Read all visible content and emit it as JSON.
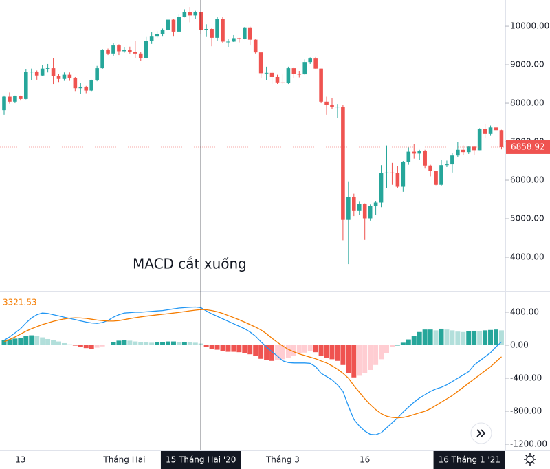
{
  "chart_data": [
    {
      "type": "candlestick",
      "up_color": "#26a69a",
      "down_color": "#ef5350",
      "ylim": [
        3125,
        10680
      ],
      "yticks": [
        {
          "value": 4000,
          "label": "4000.00"
        },
        {
          "value": 5000,
          "label": "5000.00"
        },
        {
          "value": 6000,
          "label": "6000.00"
        },
        {
          "value": 7000,
          "label": "7000.00"
        },
        {
          "value": 8000,
          "label": "8000.00"
        },
        {
          "value": 9000,
          "label": "9000.00"
        },
        {
          "value": 10000,
          "label": "10000.00"
        }
      ],
      "xticks": [
        {
          "value": 3,
          "label": "13"
        },
        {
          "value": 22,
          "label": "Tháng Hai"
        },
        {
          "value": 51,
          "label": "Tháng 3"
        },
        {
          "value": 66,
          "label": "16"
        }
      ],
      "highlight_labels": [
        {
          "value": 36,
          "label": "15 Tháng Hai '20"
        },
        {
          "value": 85.5,
          "label": "16 Tháng 1 '21"
        }
      ],
      "annotation": "MACD cắt xuống",
      "candles": [
        [
          7820,
          8200,
          7700,
          8170
        ],
        [
          8170,
          8280,
          7990,
          8040
        ],
        [
          8040,
          8200,
          8000,
          8180
        ],
        [
          8180,
          8200,
          8070,
          8110
        ],
        [
          8110,
          8880,
          8100,
          8810
        ],
        [
          8810,
          8900,
          8600,
          8820
        ],
        [
          8820,
          8850,
          8610,
          8720
        ],
        [
          8720,
          9000,
          8700,
          8900
        ],
        [
          8900,
          9020,
          8800,
          8910
        ],
        [
          8910,
          9170,
          8500,
          8700
        ],
        [
          8700,
          8750,
          8550,
          8630
        ],
        [
          8630,
          8800,
          8580,
          8740
        ],
        [
          8740,
          8800,
          8580,
          8660
        ],
        [
          8660,
          8680,
          8300,
          8390
        ],
        [
          8390,
          8530,
          8250,
          8430
        ],
        [
          8430,
          8450,
          8260,
          8330
        ],
        [
          8330,
          8610,
          8300,
          8600
        ],
        [
          8600,
          8970,
          8570,
          8910
        ],
        [
          8910,
          9410,
          8890,
          9390
        ],
        [
          9390,
          9420,
          9250,
          9290
        ],
        [
          9290,
          9560,
          9220,
          9500
        ],
        [
          9500,
          9530,
          9250,
          9350
        ],
        [
          9350,
          9460,
          9310,
          9390
        ],
        [
          9390,
          9470,
          9290,
          9340
        ],
        [
          9340,
          9610,
          9170,
          9290
        ],
        [
          9290,
          9340,
          9100,
          9180
        ],
        [
          9180,
          9720,
          9160,
          9610
        ],
        [
          9610,
          9840,
          9540,
          9730
        ],
        [
          9730,
          9870,
          9700,
          9800
        ],
        [
          9800,
          9940,
          9730,
          9900
        ],
        [
          9900,
          10190,
          9870,
          10170
        ],
        [
          10170,
          10180,
          9730,
          9860
        ],
        [
          9860,
          10300,
          9840,
          10250
        ],
        [
          10250,
          10440,
          10230,
          10360
        ],
        [
          10360,
          10500,
          10100,
          10280
        ],
        [
          10280,
          10400,
          10180,
          10370
        ],
        [
          10370,
          10380,
          9800,
          9900
        ],
        [
          9900,
          10050,
          9720,
          9930
        ],
        [
          9930,
          9960,
          9480,
          9700
        ],
        [
          9700,
          10250,
          9620,
          10180
        ],
        [
          10180,
          10240,
          9560,
          9600
        ],
        [
          9600,
          9680,
          9450,
          9600
        ],
        [
          9600,
          9770,
          9590,
          9690
        ],
        [
          9690,
          9700,
          9580,
          9670
        ],
        [
          9670,
          9980,
          9660,
          9970
        ],
        [
          9970,
          9990,
          9500,
          9650
        ],
        [
          9650,
          9660,
          9290,
          9320
        ],
        [
          9320,
          9330,
          8650,
          8780
        ],
        [
          8780,
          8950,
          8600,
          8790
        ],
        [
          8790,
          8850,
          8500,
          8680
        ],
        [
          8680,
          8740,
          8500,
          8540
        ],
        [
          8540,
          8750,
          8500,
          8520
        ],
        [
          8520,
          8950,
          8500,
          8910
        ],
        [
          8910,
          8920,
          8660,
          8760
        ],
        [
          8760,
          8840,
          8670,
          8750
        ],
        [
          8750,
          9140,
          8740,
          9070
        ],
        [
          9070,
          9190,
          9020,
          9160
        ],
        [
          9160,
          9200,
          8880,
          8900
        ],
        [
          8900,
          8900,
          8000,
          8040
        ],
        [
          8040,
          8170,
          7700,
          7950
        ],
        [
          7950,
          8130,
          7840,
          7910
        ],
        [
          7910,
          7980,
          7620,
          7910
        ],
        [
          7910,
          7960,
          4440,
          4970
        ],
        [
          4970,
          5970,
          3820,
          5560
        ],
        [
          5560,
          5650,
          5070,
          5200
        ],
        [
          5200,
          5440,
          5100,
          5390
        ],
        [
          5390,
          5400,
          4450,
          5010
        ],
        [
          5010,
          5370,
          4950,
          5330
        ],
        [
          5330,
          5450,
          5100,
          5420
        ],
        [
          5420,
          6390,
          5300,
          6190
        ],
        [
          6190,
          6900,
          5800,
          6200
        ],
        [
          6200,
          6450,
          5880,
          6190
        ],
        [
          6190,
          6370,
          5790,
          5830
        ],
        [
          5830,
          6500,
          5700,
          6480
        ],
        [
          6480,
          6850,
          6400,
          6740
        ],
        [
          6740,
          6930,
          6560,
          6690
        ],
        [
          6690,
          6790,
          6530,
          6760
        ],
        [
          6760,
          6790,
          6300,
          6380
        ],
        [
          6380,
          6400,
          6100,
          6250
        ],
        [
          6250,
          6250,
          5870,
          5880
        ],
        [
          5880,
          6520,
          5860,
          6390
        ],
        [
          6390,
          6510,
          6340,
          6410
        ],
        [
          6410,
          6700,
          6200,
          6640
        ],
        [
          6640,
          7000,
          6600,
          6790
        ],
        [
          6790,
          6900,
          6660,
          6730
        ],
        [
          6730,
          6890,
          6680,
          6870
        ],
        [
          6870,
          6890,
          6660,
          6780
        ],
        [
          6780,
          7350,
          6780,
          7340
        ],
        [
          7340,
          7450,
          7100,
          7200
        ],
        [
          7200,
          7420,
          7150,
          7370
        ],
        [
          7370,
          7390,
          7240,
          7300
        ],
        [
          7300,
          7310,
          6800,
          6858.92
        ]
      ]
    },
    {
      "type": "macd",
      "label": "3321.53",
      "label_color": "#f57c00",
      "y2lim": [
        -1275,
        658
      ],
      "y2ticks": [
        {
          "value": -1200,
          "label": "-1200.00"
        },
        {
          "value": -800,
          "label": "-800.00"
        },
        {
          "value": -400,
          "label": "-400.00"
        },
        {
          "value": 0,
          "label": "0.00"
        },
        {
          "value": 400,
          "label": "400.00"
        }
      ],
      "series": [
        {
          "color": "#2196f3",
          "values": [
            60,
            100,
            150,
            200,
            270,
            330,
            370,
            390,
            385,
            370,
            355,
            340,
            325,
            310,
            295,
            280,
            270,
            265,
            275,
            300,
            340,
            370,
            390,
            395,
            400,
            400,
            405,
            410,
            415,
            420,
            430,
            440,
            450,
            455,
            460,
            462,
            455,
            415,
            380,
            350,
            320,
            290,
            260,
            230,
            200,
            160,
            110,
            40,
            -20,
            -80,
            -130,
            -190,
            -210,
            -215,
            -215,
            -215,
            -220,
            -260,
            -340,
            -380,
            -420,
            -480,
            -560,
            -740,
            -900,
            -980,
            -1040,
            -1080,
            -1085,
            -1060,
            -1000,
            -940,
            -880,
            -810,
            -750,
            -690,
            -640,
            -600,
            -560,
            -530,
            -510,
            -480,
            -440,
            -400,
            -360,
            -320,
            -240,
            -190,
            -140,
            -90,
            -20,
            40
          ]
        },
        {
          "color": "#f57c00",
          "values": [
            40,
            70,
            100,
            135,
            170,
            200,
            225,
            250,
            270,
            290,
            305,
            318,
            328,
            332,
            330,
            325,
            315,
            305,
            298,
            293,
            292,
            298,
            310,
            322,
            333,
            343,
            352,
            360,
            368,
            375,
            382,
            390,
            398,
            407,
            416,
            425,
            432,
            430,
            420,
            405,
            385,
            360,
            335,
            308,
            280,
            250,
            220,
            185,
            140,
            85,
            35,
            -10,
            -50,
            -80,
            -105,
            -125,
            -145,
            -165,
            -190,
            -215,
            -250,
            -290,
            -340,
            -400,
            -490,
            -570,
            -650,
            -720,
            -780,
            -830,
            -860,
            -875,
            -880,
            -875,
            -860,
            -840,
            -820,
            -800,
            -770,
            -730,
            -690,
            -650,
            -610,
            -560,
            -510,
            -460,
            -410,
            -360,
            -310,
            -260,
            -200,
            -140
          ]
        }
      ],
      "histogram": {
        "colors": [
          "#26a69a",
          "#b2dfdb",
          "#ef5350",
          "#ffcdd2"
        ],
        "values": [
          60,
          70,
          80,
          90,
          110,
          120,
          110,
          95,
          75,
          60,
          45,
          25,
          10,
          -5,
          -20,
          -35,
          -45,
          -30,
          -15,
          5,
          40,
          55,
          65,
          55,
          45,
          40,
          35,
          30,
          35,
          40,
          45,
          45,
          40,
          40,
          38,
          30,
          20,
          -20,
          -45,
          -55,
          -75,
          -80,
          -80,
          -85,
          -100,
          -110,
          -130,
          -165,
          -180,
          -190,
          -175,
          -170,
          -150,
          -125,
          -100,
          -90,
          -75,
          -85,
          -130,
          -150,
          -170,
          -190,
          -240,
          -340,
          -390,
          -370,
          -340,
          -300,
          -240,
          -170,
          -100,
          -25,
          0,
          30,
          70,
          110,
          160,
          190,
          190,
          180,
          200,
          190,
          180,
          165,
          160,
          170,
          175,
          170,
          180,
          185,
          190,
          180
        ]
      }
    }
  ]
}
